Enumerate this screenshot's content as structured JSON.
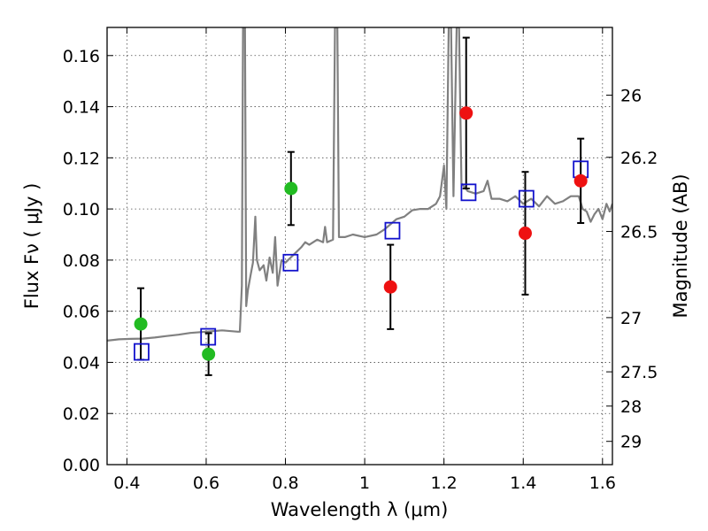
{
  "chart_data": {
    "type": "scatter",
    "title": "",
    "xlabel": "Wavelength  λ (μm)",
    "ylabel": "Flux  Fν  ( μJy )",
    "ylabel_right": "Magnitude (AB)",
    "xlim": [
      0.35,
      1.625
    ],
    "ylim": [
      0.0,
      0.171
    ],
    "grid": true,
    "x_ticks": [
      0.4,
      0.6,
      0.8,
      1.0,
      1.2,
      1.4,
      1.6
    ],
    "x_tick_labels": [
      "0.4",
      "0.6",
      "0.8",
      "1",
      "1.2",
      "1.4",
      "1.6"
    ],
    "y_ticks": [
      0.0,
      0.02,
      0.04,
      0.06,
      0.08,
      0.1,
      0.12,
      0.14,
      0.16
    ],
    "y_tick_labels": [
      "0.00",
      "0.02",
      "0.04",
      "0.06",
      "0.08",
      "0.10",
      "0.12",
      "0.14",
      "0.16"
    ],
    "right_ticks": [
      {
        "label": "26",
        "flux": 0.1445
      },
      {
        "label": "26.2",
        "flux": 0.1202
      },
      {
        "label": "26.5",
        "flux": 0.0912
      },
      {
        "label": "27",
        "flux": 0.0575
      },
      {
        "label": "27.5",
        "flux": 0.0363
      },
      {
        "label": "28",
        "flux": 0.0229
      },
      {
        "label": "29",
        "flux": 0.0091
      }
    ],
    "series": [
      {
        "marker": "circle",
        "color": "#22bb22",
        "points": [
          {
            "x": 0.435,
            "y": 0.055,
            "err_lo": 0.014,
            "err_hi": 0.014
          },
          {
            "x": 0.606,
            "y": 0.0432,
            "err_lo": 0.0082,
            "err_hi": 0.0082
          },
          {
            "x": 0.814,
            "y": 0.108,
            "err_lo": 0.0143,
            "err_hi": 0.0143
          }
        ]
      },
      {
        "marker": "circle",
        "color": "#ee1111",
        "points": [
          {
            "x": 1.065,
            "y": 0.0695,
            "err_lo": 0.0165,
            "err_hi": 0.0165
          },
          {
            "x": 1.256,
            "y": 0.1375,
            "err_lo": 0.0295,
            "err_hi": 0.0295
          },
          {
            "x": 1.405,
            "y": 0.0905,
            "err_lo": 0.024,
            "err_hi": 0.024
          },
          {
            "x": 1.545,
            "y": 0.111,
            "err_lo": 0.0165,
            "err_hi": 0.0165
          }
        ]
      },
      {
        "marker": "open-square",
        "color": "#1111cc",
        "points": [
          {
            "x": 0.437,
            "y": 0.0441
          },
          {
            "x": 0.605,
            "y": 0.05
          },
          {
            "x": 0.813,
            "y": 0.079
          },
          {
            "x": 1.07,
            "y": 0.0915
          },
          {
            "x": 1.262,
            "y": 0.1065
          },
          {
            "x": 1.408,
            "y": 0.104
          },
          {
            "x": 1.545,
            "y": 0.1155
          }
        ]
      },
      {
        "marker": "line",
        "color": "#808080",
        "points": [
          {
            "x": 0.35,
            "y": 0.0485
          },
          {
            "x": 0.38,
            "y": 0.049
          },
          {
            "x": 0.41,
            "y": 0.0492
          },
          {
            "x": 0.44,
            "y": 0.0493
          },
          {
            "x": 0.47,
            "y": 0.0497
          },
          {
            "x": 0.5,
            "y": 0.0503
          },
          {
            "x": 0.53,
            "y": 0.0508
          },
          {
            "x": 0.56,
            "y": 0.0515
          },
          {
            "x": 0.6,
            "y": 0.052
          },
          {
            "x": 0.64,
            "y": 0.0525
          },
          {
            "x": 0.68,
            "y": 0.052
          },
          {
            "x": 0.685,
            "y": 0.052
          },
          {
            "x": 0.69,
            "y": 0.07
          },
          {
            "x": 0.693,
            "y": 0.171
          },
          {
            "x": 0.698,
            "y": 0.171
          },
          {
            "x": 0.701,
            "y": 0.062
          },
          {
            "x": 0.705,
            "y": 0.068
          },
          {
            "x": 0.712,
            "y": 0.074
          },
          {
            "x": 0.718,
            "y": 0.079
          },
          {
            "x": 0.724,
            "y": 0.097
          },
          {
            "x": 0.728,
            "y": 0.08
          },
          {
            "x": 0.735,
            "y": 0.076
          },
          {
            "x": 0.745,
            "y": 0.078
          },
          {
            "x": 0.752,
            "y": 0.072
          },
          {
            "x": 0.76,
            "y": 0.081
          },
          {
            "x": 0.768,
            "y": 0.075
          },
          {
            "x": 0.774,
            "y": 0.089
          },
          {
            "x": 0.78,
            "y": 0.07
          },
          {
            "x": 0.79,
            "y": 0.08
          },
          {
            "x": 0.8,
            "y": 0.079
          },
          {
            "x": 0.82,
            "y": 0.082
          },
          {
            "x": 0.84,
            "y": 0.085
          },
          {
            "x": 0.85,
            "y": 0.087
          },
          {
            "x": 0.86,
            "y": 0.086
          },
          {
            "x": 0.88,
            "y": 0.088
          },
          {
            "x": 0.895,
            "y": 0.087
          },
          {
            "x": 0.9,
            "y": 0.093
          },
          {
            "x": 0.905,
            "y": 0.087
          },
          {
            "x": 0.92,
            "y": 0.088
          },
          {
            "x": 0.925,
            "y": 0.171
          },
          {
            "x": 0.931,
            "y": 0.171
          },
          {
            "x": 0.935,
            "y": 0.089
          },
          {
            "x": 0.95,
            "y": 0.089
          },
          {
            "x": 0.97,
            "y": 0.09
          },
          {
            "x": 1.0,
            "y": 0.089
          },
          {
            "x": 1.03,
            "y": 0.09
          },
          {
            "x": 1.05,
            "y": 0.092
          },
          {
            "x": 1.08,
            "y": 0.096
          },
          {
            "x": 1.1,
            "y": 0.097
          },
          {
            "x": 1.12,
            "y": 0.0995
          },
          {
            "x": 1.14,
            "y": 0.1
          },
          {
            "x": 1.16,
            "y": 0.1
          },
          {
            "x": 1.18,
            "y": 0.102
          },
          {
            "x": 1.19,
            "y": 0.105
          },
          {
            "x": 1.2,
            "y": 0.117
          },
          {
            "x": 1.206,
            "y": 0.1
          },
          {
            "x": 1.212,
            "y": 0.171
          },
          {
            "x": 1.218,
            "y": 0.171
          },
          {
            "x": 1.224,
            "y": 0.105
          },
          {
            "x": 1.232,
            "y": 0.171
          },
          {
            "x": 1.238,
            "y": 0.171
          },
          {
            "x": 1.244,
            "y": 0.11
          },
          {
            "x": 1.26,
            "y": 0.107
          },
          {
            "x": 1.28,
            "y": 0.106
          },
          {
            "x": 1.3,
            "y": 0.107
          },
          {
            "x": 1.31,
            "y": 0.111
          },
          {
            "x": 1.32,
            "y": 0.104
          },
          {
            "x": 1.34,
            "y": 0.104
          },
          {
            "x": 1.36,
            "y": 0.103
          },
          {
            "x": 1.38,
            "y": 0.105
          },
          {
            "x": 1.4,
            "y": 0.102
          },
          {
            "x": 1.42,
            "y": 0.104
          },
          {
            "x": 1.44,
            "y": 0.101
          },
          {
            "x": 1.46,
            "y": 0.105
          },
          {
            "x": 1.48,
            "y": 0.102
          },
          {
            "x": 1.5,
            "y": 0.103
          },
          {
            "x": 1.52,
            "y": 0.105
          },
          {
            "x": 1.54,
            "y": 0.105
          },
          {
            "x": 1.55,
            "y": 0.1
          },
          {
            "x": 1.56,
            "y": 0.099
          },
          {
            "x": 1.57,
            "y": 0.095
          },
          {
            "x": 1.58,
            "y": 0.098
          },
          {
            "x": 1.59,
            "y": 0.1
          },
          {
            "x": 1.6,
            "y": 0.096
          },
          {
            "x": 1.61,
            "y": 0.102
          },
          {
            "x": 1.618,
            "y": 0.099
          },
          {
            "x": 1.625,
            "y": 0.102
          }
        ]
      }
    ]
  }
}
